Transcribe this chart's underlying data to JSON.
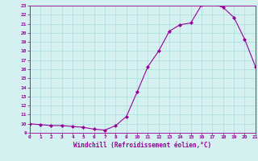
{
  "x_values": [
    0,
    1,
    2,
    3,
    4,
    5,
    6,
    7,
    8,
    9,
    10,
    11,
    12,
    13,
    14,
    15,
    16,
    17,
    18,
    19,
    20,
    21
  ],
  "y_values": [
    10.0,
    9.9,
    9.8,
    9.8,
    9.7,
    9.6,
    9.4,
    9.3,
    9.8,
    10.8,
    13.5,
    16.3,
    18.0,
    20.2,
    20.9,
    21.1,
    23.1,
    23.2,
    22.8,
    21.7,
    19.3,
    16.3
  ],
  "xlim": [
    0,
    21
  ],
  "ylim": [
    9,
    23
  ],
  "yticks": [
    9,
    10,
    11,
    12,
    13,
    14,
    15,
    16,
    17,
    18,
    19,
    20,
    21,
    22,
    23
  ],
  "xticks": [
    0,
    1,
    2,
    3,
    4,
    5,
    6,
    7,
    8,
    9,
    10,
    11,
    12,
    13,
    14,
    15,
    16,
    17,
    18,
    19,
    20,
    21
  ],
  "xlabel": "Windchill (Refroidissement éolien,°C)",
  "line_color": "#990099",
  "marker_color": "#990099",
  "bg_color": "#d4f0f0",
  "grid_color": "#aadddd",
  "axis_color": "#990099",
  "tick_color": "#990099",
  "label_color": "#990099"
}
